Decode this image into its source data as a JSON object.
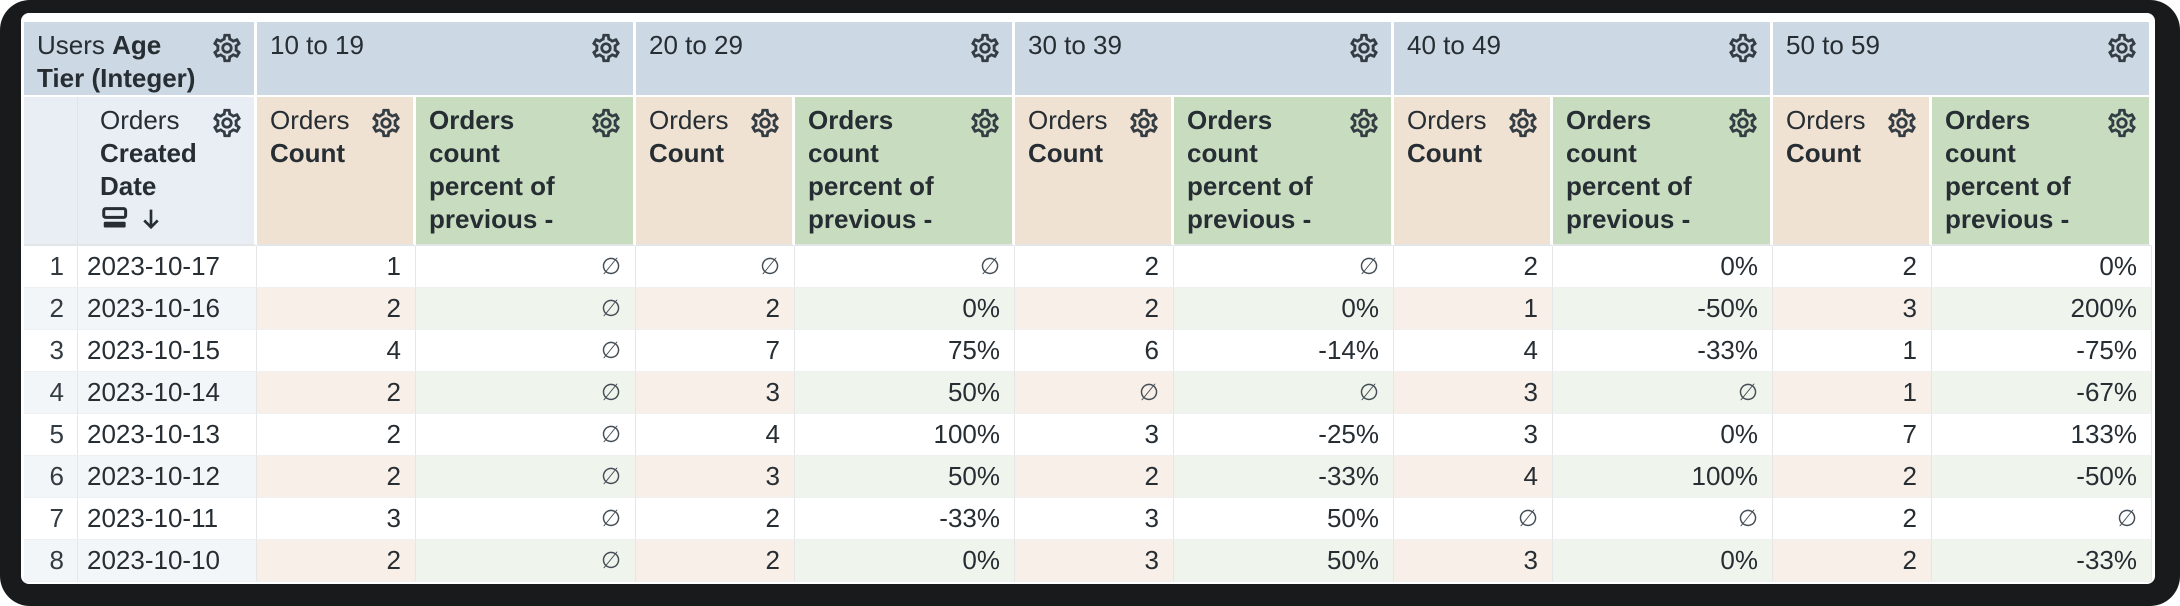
{
  "pivot_table": {
    "corner_header": {
      "view": "Users",
      "field": "Age Tier (Integer)"
    },
    "row_field_header": {
      "view": "Orders",
      "field": "Created Date",
      "sort_direction": "descending"
    },
    "tier_headers": [
      "10 to 19",
      "20 to 29",
      "30 to 39",
      "40 to 49",
      "50 to 59"
    ],
    "measures": {
      "count": {
        "view": "Orders",
        "field": "Count"
      },
      "percent": {
        "label": "Orders count percent of previous - across rows"
      }
    },
    "null_symbol": "∅",
    "rows": [
      {
        "n": "1",
        "date": "2023-10-17",
        "values": [
          "1",
          "∅",
          "∅",
          "∅",
          "2",
          "∅",
          "2",
          "0%",
          "2",
          "0%"
        ]
      },
      {
        "n": "2",
        "date": "2023-10-16",
        "values": [
          "2",
          "∅",
          "2",
          "0%",
          "2",
          "0%",
          "1",
          "-50%",
          "3",
          "200%"
        ]
      },
      {
        "n": "3",
        "date": "2023-10-15",
        "values": [
          "4",
          "∅",
          "7",
          "75%",
          "6",
          "-14%",
          "4",
          "-33%",
          "1",
          "-75%"
        ]
      },
      {
        "n": "4",
        "date": "2023-10-14",
        "values": [
          "2",
          "∅",
          "3",
          "50%",
          "∅",
          "∅",
          "3",
          "∅",
          "1",
          "-67%"
        ]
      },
      {
        "n": "5",
        "date": "2023-10-13",
        "values": [
          "2",
          "∅",
          "4",
          "100%",
          "3",
          "-25%",
          "3",
          "0%",
          "7",
          "133%"
        ]
      },
      {
        "n": "6",
        "date": "2023-10-12",
        "values": [
          "2",
          "∅",
          "3",
          "50%",
          "2",
          "-33%",
          "4",
          "100%",
          "2",
          "-50%"
        ]
      },
      {
        "n": "7",
        "date": "2023-10-11",
        "values": [
          "3",
          "∅",
          "2",
          "-33%",
          "3",
          "50%",
          "∅",
          "∅",
          "2",
          "∅"
        ]
      },
      {
        "n": "8",
        "date": "2023-10-10",
        "values": [
          "2",
          "∅",
          "2",
          "0%",
          "3",
          "50%",
          "3",
          "0%",
          "2",
          "-33%"
        ]
      }
    ],
    "icons": {
      "settings": "gear-outline",
      "chevron_right": "›",
      "sort_descending": "↓",
      "group_subtotal": "stacked-bars"
    },
    "colors": {
      "tier_header_bg": "#ccd8e3",
      "row_field_header_bg": "#e9eef5",
      "count_header_bg": "#f0e2d2",
      "percent_header_bg": "#c8dcc0",
      "alt_row_base_bg": "#f3f6f8",
      "alt_row_count_bg": "#f8efe8",
      "alt_row_percent_bg": "#eff5ec",
      "text": "#262d33",
      "frame": "#191a1c"
    }
  }
}
